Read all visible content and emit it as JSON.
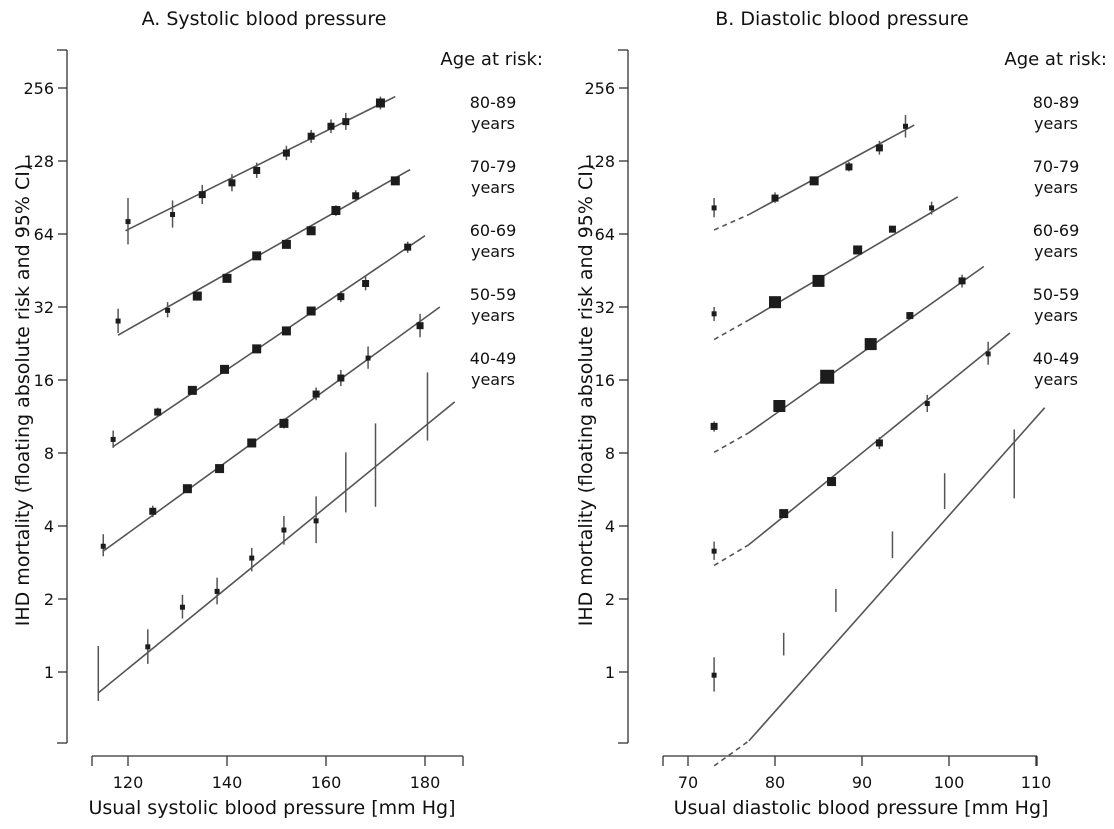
{
  "chart_data": [
    {
      "type": "scatter",
      "title": "A. Systolic blood pressure",
      "xlabel": "Usual systolic blood pressure [mm Hg]",
      "ylabel": "IHD mortality (floating absolute risk and 95% CI)",
      "xticks": [
        120,
        140,
        160,
        180
      ],
      "xlim": [
        112,
        187
      ],
      "yticks": [
        1,
        2,
        4,
        8,
        16,
        32,
        64,
        128,
        256
      ],
      "yscale": "log2",
      "ylim": [
        0.5,
        362
      ],
      "legend_header": "Age at risk:",
      "series": [
        {
          "name": "80-89 years",
          "points": [
            {
              "x": 120,
              "y": 72,
              "lo": 58,
              "hi": 90,
              "w": 1
            },
            {
              "x": 129,
              "y": 77,
              "lo": 68,
              "hi": 88,
              "w": 1
            },
            {
              "x": 135,
              "y": 93,
              "lo": 85,
              "hi": 102,
              "w": 2
            },
            {
              "x": 141,
              "y": 104,
              "lo": 96,
              "hi": 113,
              "w": 2
            },
            {
              "x": 146,
              "y": 117,
              "lo": 109,
              "hi": 126,
              "w": 2
            },
            {
              "x": 152,
              "y": 138,
              "lo": 129,
              "hi": 148,
              "w": 2
            },
            {
              "x": 157,
              "y": 162,
              "lo": 152,
              "hi": 172,
              "w": 2
            },
            {
              "x": 161,
              "y": 178,
              "lo": 167,
              "hi": 190,
              "w": 2
            },
            {
              "x": 164,
              "y": 186,
              "lo": 172,
              "hi": 202,
              "w": 2
            },
            {
              "x": 171,
              "y": 222,
              "lo": 209,
              "hi": 236,
              "w": 3
            }
          ],
          "fit": [
            [
              119.5,
              66
            ],
            [
              174,
              236
            ]
          ]
        },
        {
          "name": "70-79 years",
          "points": [
            {
              "x": 118,
              "y": 28,
              "lo": 25,
              "hi": 31.5,
              "w": 1
            },
            {
              "x": 128,
              "y": 31,
              "lo": 29,
              "hi": 33.5,
              "w": 1
            },
            {
              "x": 134,
              "y": 35.5,
              "lo": 34,
              "hi": 37,
              "w": 3
            },
            {
              "x": 140,
              "y": 42,
              "lo": 40.5,
              "hi": 43.5,
              "w": 3
            },
            {
              "x": 146,
              "y": 52,
              "lo": 50,
              "hi": 54,
              "w": 3
            },
            {
              "x": 152,
              "y": 58,
              "lo": 56,
              "hi": 60,
              "w": 3
            },
            {
              "x": 157,
              "y": 66,
              "lo": 63.5,
              "hi": 68.5,
              "w": 3
            },
            {
              "x": 162,
              "y": 80,
              "lo": 76,
              "hi": 84,
              "w": 3
            },
            {
              "x": 166,
              "y": 92,
              "lo": 87,
              "hi": 97,
              "w": 2
            },
            {
              "x": 174,
              "y": 106,
              "lo": 102,
              "hi": 110,
              "w": 3
            }
          ],
          "fit": [
            [
              118,
              24.5
            ],
            [
              177,
              118
            ]
          ]
        },
        {
          "name": "60-69 years",
          "points": [
            {
              "x": 117,
              "y": 9.1,
              "lo": 8.4,
              "hi": 9.9,
              "w": 1
            },
            {
              "x": 126,
              "y": 11.8,
              "lo": 11.3,
              "hi": 12.3,
              "w": 2
            },
            {
              "x": 133,
              "y": 14.5,
              "lo": 14.0,
              "hi": 15.0,
              "w": 3
            },
            {
              "x": 139.5,
              "y": 17.7,
              "lo": 17.2,
              "hi": 18.2,
              "w": 3
            },
            {
              "x": 146,
              "y": 21.5,
              "lo": 20.9,
              "hi": 22.1,
              "w": 3
            },
            {
              "x": 152,
              "y": 25.5,
              "lo": 24.8,
              "hi": 26.2,
              "w": 3
            },
            {
              "x": 157,
              "y": 30.8,
              "lo": 29.6,
              "hi": 32.0,
              "w": 3
            },
            {
              "x": 163,
              "y": 35.3,
              "lo": 33.5,
              "hi": 37.2,
              "w": 2
            },
            {
              "x": 168,
              "y": 40,
              "lo": 37.5,
              "hi": 42.8,
              "w": 2
            },
            {
              "x": 176.5,
              "y": 56.5,
              "lo": 53.5,
              "hi": 59.5,
              "w": 2
            }
          ],
          "fit": [
            [
              117,
              8.5
            ],
            [
              180,
              63
            ]
          ]
        },
        {
          "name": "50-59 years",
          "points": [
            {
              "x": 115,
              "y": 3.3,
              "lo": 3.0,
              "hi": 3.7,
              "w": 1
            },
            {
              "x": 125,
              "y": 4.6,
              "lo": 4.35,
              "hi": 4.85,
              "w": 2
            },
            {
              "x": 132,
              "y": 5.7,
              "lo": 5.5,
              "hi": 5.9,
              "w": 3
            },
            {
              "x": 138.5,
              "y": 6.9,
              "lo": 6.7,
              "hi": 7.1,
              "w": 3
            },
            {
              "x": 145,
              "y": 8.8,
              "lo": 8.5,
              "hi": 9.1,
              "w": 3
            },
            {
              "x": 151.5,
              "y": 10.6,
              "lo": 10.1,
              "hi": 11.1,
              "w": 3
            },
            {
              "x": 158,
              "y": 14.0,
              "lo": 13.2,
              "hi": 14.9,
              "w": 2
            },
            {
              "x": 163,
              "y": 16.3,
              "lo": 15.1,
              "hi": 17.6,
              "w": 2
            },
            {
              "x": 168.5,
              "y": 19.7,
              "lo": 17.8,
              "hi": 22.0,
              "w": 1
            },
            {
              "x": 179,
              "y": 26.8,
              "lo": 24.0,
              "hi": 30.0,
              "w": 2
            }
          ],
          "fit": [
            [
              115,
              3.15
            ],
            [
              183,
              32
            ]
          ]
        },
        {
          "name": "40-49 years",
          "points": [
            {
              "x": 114,
              "y": 0.98,
              "lo": 0.76,
              "hi": 1.28,
              "w": 0
            },
            {
              "x": 124,
              "y": 1.27,
              "lo": 1.08,
              "hi": 1.5,
              "w": 1
            },
            {
              "x": 131,
              "y": 1.85,
              "lo": 1.66,
              "hi": 2.08,
              "w": 1
            },
            {
              "x": 138,
              "y": 2.15,
              "lo": 1.9,
              "hi": 2.45,
              "w": 1
            },
            {
              "x": 145,
              "y": 2.95,
              "lo": 2.6,
              "hi": 3.25,
              "w": 1
            },
            {
              "x": 151.5,
              "y": 3.85,
              "lo": 3.35,
              "hi": 4.4,
              "w": 1
            },
            {
              "x": 158,
              "y": 4.2,
              "lo": 3.4,
              "hi": 5.3,
              "w": 1
            },
            {
              "x": 164,
              "y": 6.0,
              "lo": 4.55,
              "hi": 8.05,
              "w": 0
            },
            {
              "x": 170,
              "y": 7.3,
              "lo": 4.8,
              "hi": 10.6,
              "w": 0
            },
            {
              "x": 180.5,
              "y": 12.3,
              "lo": 9.0,
              "hi": 17.2,
              "w": 0
            }
          ],
          "fit": [
            [
              114,
              0.82
            ],
            [
              186,
              13.0
            ]
          ]
        }
      ]
    },
    {
      "type": "scatter",
      "title": "B. Diastolic blood pressure",
      "xlabel": "Usual diastolic blood pressure [mm Hg]",
      "ylabel": "IHD mortality (floating absolute risk and 95% CI)",
      "xticks": [
        70,
        80,
        90,
        100,
        110
      ],
      "xlim": [
        66.5,
        114
      ],
      "yticks": [
        1,
        2,
        4,
        8,
        16,
        32,
        64,
        128,
        256
      ],
      "yscale": "log2",
      "ylim": [
        0.5,
        362
      ],
      "legend_header": "Age at risk:",
      "series": [
        {
          "name": "80-89 years",
          "points": [
            {
              "x": 73,
              "y": 82,
              "lo": 75,
              "hi": 90,
              "w": 1
            },
            {
              "x": 80,
              "y": 90,
              "lo": 86,
              "hi": 95,
              "w": 2
            },
            {
              "x": 84.5,
              "y": 106,
              "lo": 102,
              "hi": 110,
              "w": 3
            },
            {
              "x": 88.5,
              "y": 121,
              "lo": 116,
              "hi": 127,
              "w": 2
            },
            {
              "x": 92,
              "y": 145,
              "lo": 136,
              "hi": 155,
              "w": 2
            },
            {
              "x": 95,
              "y": 178,
              "lo": 160,
              "hi": 198,
              "w": 1
            }
          ],
          "solid": [
            [
              77,
              77
            ],
            [
              96,
              180
            ]
          ],
          "dash": [
            [
              73,
              66.5
            ],
            [
              77,
              77
            ]
          ]
        },
        {
          "name": "70-79 years",
          "points": [
            {
              "x": 73,
              "y": 30,
              "lo": 28,
              "hi": 32,
              "w": 1
            },
            {
              "x": 80,
              "y": 33.5,
              "lo": 32.5,
              "hi": 34.5,
              "w": 4
            },
            {
              "x": 85,
              "y": 41,
              "lo": 40,
              "hi": 42,
              "w": 4
            },
            {
              "x": 89.5,
              "y": 55,
              "lo": 53.5,
              "hi": 56.5,
              "w": 3
            },
            {
              "x": 93.5,
              "y": 67,
              "lo": 65,
              "hi": 69,
              "w": 2
            },
            {
              "x": 98,
              "y": 82,
              "lo": 77,
              "hi": 87,
              "w": 1
            }
          ],
          "solid": [
            [
              77,
              28.3
            ],
            [
              101,
              91
            ]
          ],
          "dash": [
            [
              73,
              23.5
            ],
            [
              77,
              28.3
            ]
          ]
        },
        {
          "name": "60-69 years",
          "points": [
            {
              "x": 73,
              "y": 10.3,
              "lo": 9.8,
              "hi": 10.8,
              "w": 2
            },
            {
              "x": 80.5,
              "y": 12.5,
              "lo": 12.1,
              "hi": 12.9,
              "w": 4
            },
            {
              "x": 86,
              "y": 16.5,
              "lo": 16.0,
              "hi": 17.0,
              "w": 5
            },
            {
              "x": 91,
              "y": 22.5,
              "lo": 21.8,
              "hi": 23.2,
              "w": 4
            },
            {
              "x": 95.5,
              "y": 29.5,
              "lo": 28.5,
              "hi": 30.5,
              "w": 2
            },
            {
              "x": 101.5,
              "y": 41,
              "lo": 38.5,
              "hi": 43.5,
              "w": 2
            }
          ],
          "solid": [
            [
              77,
              9.7
            ],
            [
              104,
              47
            ]
          ],
          "dash": [
            [
              73,
              8.05
            ],
            [
              77,
              9.7
            ]
          ]
        },
        {
          "name": "50-59 years",
          "points": [
            {
              "x": 73,
              "y": 3.15,
              "lo": 2.9,
              "hi": 3.45,
              "w": 1
            },
            {
              "x": 81,
              "y": 4.5,
              "lo": 4.35,
              "hi": 4.65,
              "w": 3
            },
            {
              "x": 86.5,
              "y": 6.1,
              "lo": 5.9,
              "hi": 6.3,
              "w": 3
            },
            {
              "x": 92,
              "y": 8.8,
              "lo": 8.3,
              "hi": 9.3,
              "w": 2
            },
            {
              "x": 97.5,
              "y": 12.8,
              "lo": 11.8,
              "hi": 13.9,
              "w": 1
            },
            {
              "x": 104.5,
              "y": 20.5,
              "lo": 18.5,
              "hi": 23.0,
              "w": 1
            }
          ],
          "solid": [
            [
              77,
              3.35
            ],
            [
              107,
              25
            ]
          ],
          "dash": [
            [
              73,
              2.75
            ],
            [
              77,
              3.35
            ]
          ]
        },
        {
          "name": "40-49 years",
          "points": [
            {
              "x": 73,
              "y": 0.97,
              "lo": 0.83,
              "hi": 1.15,
              "w": 1
            },
            {
              "x": 81,
              "y": 1.3,
              "lo": 1.17,
              "hi": 1.45,
              "w": 0
            },
            {
              "x": 87,
              "y": 1.97,
              "lo": 1.77,
              "hi": 2.2,
              "w": 0
            },
            {
              "x": 93.5,
              "y": 3.35,
              "lo": 2.95,
              "hi": 3.8,
              "w": 0
            },
            {
              "x": 99.5,
              "y": 5.5,
              "lo": 4.7,
              "hi": 6.6,
              "w": 0
            },
            {
              "x": 107.5,
              "y": 7.2,
              "lo": 5.2,
              "hi": 10.0,
              "w": 0
            }
          ],
          "solid": [
            [
              77,
              0.52
            ],
            [
              111,
              12.3
            ]
          ],
          "dash": [
            [
              73,
              0.41
            ],
            [
              77,
              0.52
            ]
          ]
        }
      ]
    }
  ]
}
